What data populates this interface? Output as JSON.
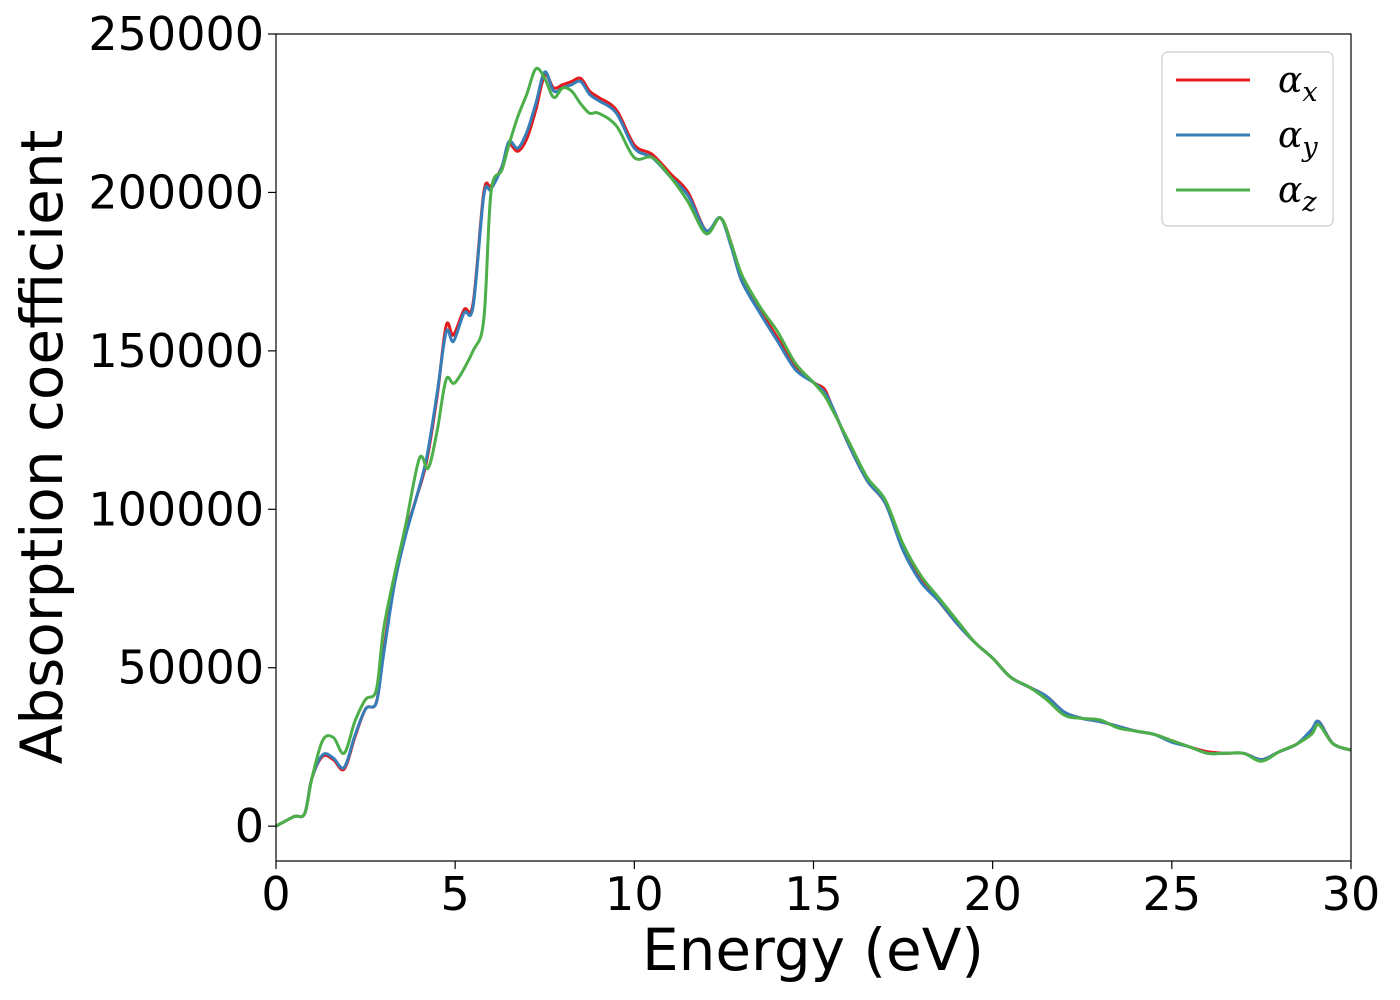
{
  "chart_data": {
    "type": "line",
    "title": "",
    "xlabel": "Energy (eV)",
    "ylabel": "Absorption coefficient",
    "xlim": [
      0,
      30
    ],
    "ylim": [
      -11000,
      250000
    ],
    "x_ticks": [
      0,
      5,
      10,
      15,
      20,
      25,
      30
    ],
    "y_ticks": [
      0,
      50000,
      100000,
      150000,
      200000,
      250000
    ],
    "grid": false,
    "legend_position": "top-right",
    "series": [
      {
        "name": "α",
        "subscript": "x",
        "color": "#e41a1c",
        "x": [
          0,
          0.5,
          0.8,
          1.0,
          1.3,
          1.6,
          1.9,
          2.2,
          2.5,
          2.8,
          3.0,
          3.3,
          3.6,
          3.9,
          4.2,
          4.5,
          4.75,
          4.95,
          5.25,
          5.5,
          5.8,
          6.0,
          6.3,
          6.5,
          6.75,
          7.0,
          7.25,
          7.5,
          7.75,
          8.0,
          8.25,
          8.5,
          8.75,
          9.0,
          9.5,
          10.0,
          10.5,
          11.0,
          11.5,
          12.0,
          12.4,
          12.7,
          13.0,
          13.5,
          14.0,
          14.5,
          15.0,
          15.3,
          15.5,
          16.0,
          16.5,
          17.0,
          17.5,
          18.0,
          18.5,
          19.0,
          19.5,
          20.0,
          20.5,
          21.0,
          21.5,
          22.0,
          22.5,
          23.0,
          23.5,
          24.0,
          24.5,
          25.0,
          25.5,
          26.0,
          26.5,
          27.0,
          27.5,
          28.0,
          28.5,
          28.9,
          29.1,
          29.5,
          30.0
        ],
        "values": [
          0,
          3000,
          4000,
          15000,
          22000,
          21000,
          18000,
          28000,
          37000,
          39000,
          55000,
          77000,
          92000,
          103000,
          115000,
          136000,
          158000,
          155000,
          163000,
          165000,
          200000,
          202000,
          208000,
          215000,
          213000,
          217000,
          226000,
          237000,
          233000,
          234000,
          235000,
          236000,
          232000,
          230000,
          226000,
          215000,
          212000,
          206000,
          200000,
          188000,
          192000,
          184000,
          172000,
          163000,
          154000,
          145000,
          140000,
          138000,
          133000,
          120000,
          109000,
          102000,
          88000,
          78000,
          71000,
          64000,
          58000,
          53000,
          47000,
          44000,
          41000,
          36000,
          34000,
          33000,
          31500,
          30000,
          29000,
          27000,
          25000,
          23500,
          23000,
          23000,
          21000,
          23500,
          26000,
          30000,
          33000,
          26000,
          24000
        ]
      },
      {
        "name": "α",
        "subscript": "y",
        "color": "#377eb8",
        "x": [
          0,
          0.5,
          0.8,
          1.0,
          1.3,
          1.6,
          1.9,
          2.2,
          2.5,
          2.8,
          3.0,
          3.3,
          3.6,
          3.9,
          4.2,
          4.5,
          4.75,
          4.95,
          5.25,
          5.5,
          5.8,
          6.0,
          6.3,
          6.5,
          6.75,
          7.0,
          7.25,
          7.5,
          7.75,
          8.0,
          8.25,
          8.5,
          8.75,
          9.0,
          9.5,
          10.0,
          10.5,
          11.0,
          11.5,
          12.0,
          12.4,
          12.7,
          13.0,
          13.5,
          14.0,
          14.5,
          15.0,
          15.3,
          15.5,
          16.0,
          16.5,
          17.0,
          17.5,
          18.0,
          18.5,
          19.0,
          19.5,
          20.0,
          20.5,
          21.0,
          21.5,
          22.0,
          22.5,
          23.0,
          23.5,
          24.0,
          24.5,
          25.0,
          25.5,
          26.0,
          26.5,
          27.0,
          27.5,
          28.0,
          28.5,
          28.9,
          29.1,
          29.5,
          30.0
        ],
        "values": [
          0,
          3000,
          4000,
          15000,
          22500,
          21500,
          18500,
          28500,
          37000,
          39000,
          54000,
          76000,
          91000,
          103000,
          116000,
          137000,
          156000,
          153000,
          162000,
          164000,
          199000,
          201000,
          208000,
          216000,
          214000,
          219000,
          228000,
          238000,
          232000,
          233000,
          234000,
          235000,
          231000,
          229000,
          225000,
          214000,
          211000,
          205000,
          199000,
          188000,
          192000,
          183000,
          172000,
          162000,
          153000,
          144000,
          140000,
          137000,
          133000,
          120000,
          109000,
          102000,
          87000,
          77000,
          71000,
          64000,
          58000,
          53000,
          47000,
          44000,
          41000,
          36000,
          34000,
          33000,
          31500,
          30000,
          29000,
          26500,
          25000,
          23000,
          23000,
          23000,
          21000,
          23500,
          26000,
          30500,
          33000,
          26000,
          24000
        ]
      },
      {
        "name": "α",
        "subscript": "z",
        "color": "#4daf4a",
        "x": [
          0,
          0.5,
          0.8,
          1.0,
          1.3,
          1.6,
          1.9,
          2.2,
          2.5,
          2.8,
          3.0,
          3.3,
          3.6,
          4.0,
          4.25,
          4.5,
          4.75,
          5.0,
          5.5,
          5.8,
          6.0,
          6.3,
          6.5,
          6.75,
          7.0,
          7.25,
          7.5,
          7.75,
          8.0,
          8.25,
          8.5,
          8.75,
          9.0,
          9.5,
          10.0,
          10.5,
          11.0,
          11.5,
          12.0,
          12.4,
          12.7,
          13.0,
          13.5,
          14.0,
          14.5,
          15.0,
          15.3,
          15.5,
          16.0,
          16.5,
          17.0,
          17.5,
          18.0,
          18.5,
          19.0,
          19.5,
          20.0,
          20.5,
          21.0,
          21.5,
          22.0,
          22.5,
          23.0,
          23.5,
          24.0,
          24.5,
          25.0,
          25.5,
          26.0,
          26.5,
          27.0,
          27.5,
          28.0,
          28.5,
          28.9,
          29.1,
          29.5,
          30.0
        ],
        "values": [
          0,
          3000,
          4000,
          15000,
          27000,
          28000,
          23000,
          33000,
          40000,
          43000,
          62000,
          79000,
          94000,
          116000,
          113000,
          125000,
          141000,
          140000,
          150000,
          160000,
          200000,
          207000,
          215000,
          224000,
          231000,
          239000,
          236000,
          230000,
          233000,
          232000,
          228000,
          225000,
          225000,
          221000,
          211000,
          211000,
          205000,
          197000,
          187000,
          192000,
          184000,
          174000,
          164000,
          156000,
          146000,
          140000,
          136000,
          132000,
          121000,
          110000,
          103000,
          89000,
          79000,
          72000,
          65000,
          58000,
          53000,
          47000,
          44000,
          40000,
          35000,
          34000,
          33500,
          31000,
          30000,
          29000,
          27000,
          25000,
          23000,
          23000,
          23000,
          20500,
          23500,
          26000,
          29000,
          32000,
          26000,
          24000
        ]
      }
    ]
  }
}
